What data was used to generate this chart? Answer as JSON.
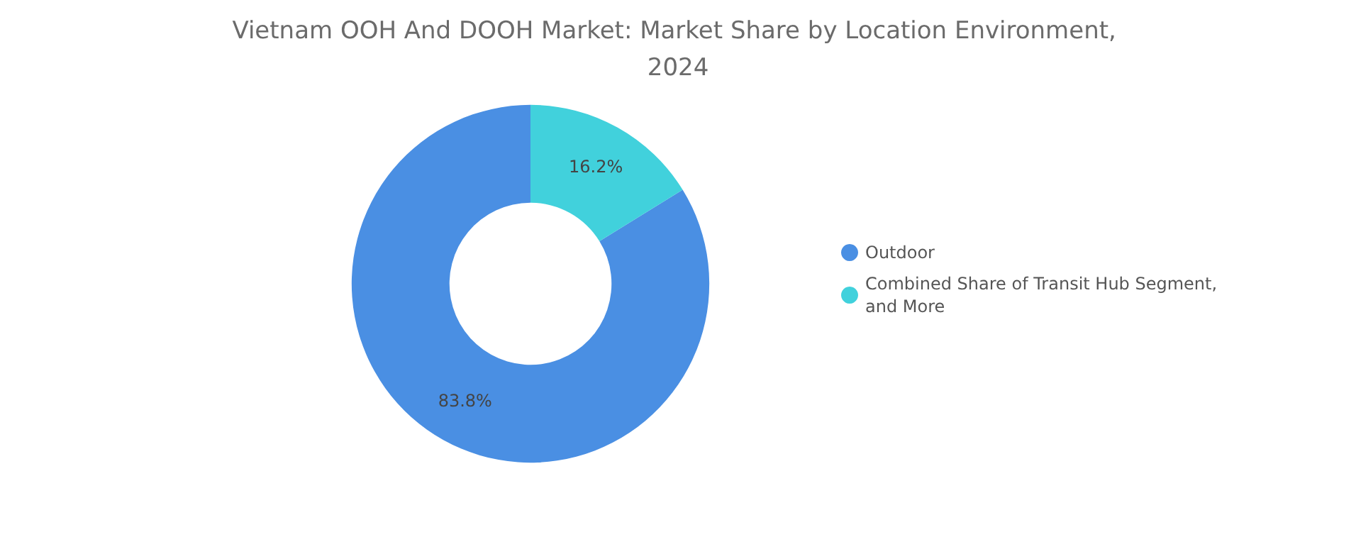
{
  "chart_data": {
    "type": "donut",
    "title": "Vietnam OOH And DOOH Market: Market Share by Location Environment, 2024",
    "categories": [
      "Outdoor",
      "Combined Share of Transit Hub Segment, and More"
    ],
    "values": [
      83.8,
      16.2
    ],
    "colors": [
      "#4a8fe3",
      "#41d1dc"
    ],
    "value_labels": [
      "83.8%",
      "16.2%"
    ],
    "legend": "right"
  }
}
